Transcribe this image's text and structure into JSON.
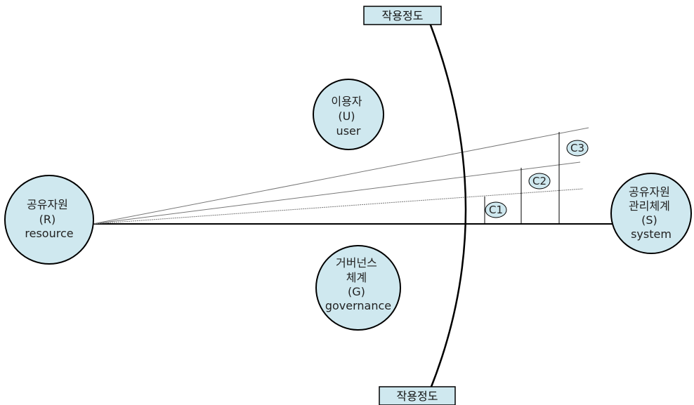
{
  "colors": {
    "node_fill": "#cfe8ef",
    "stroke": "#000000",
    "ray": "#777777"
  },
  "nodes": {
    "resource": {
      "lines": [
        "공유자원",
        "(R)",
        "resource"
      ]
    },
    "user": {
      "lines": [
        "이용자",
        "(U)",
        "user"
      ]
    },
    "governance": {
      "lines": [
        "거버넌스",
        "체계",
        "(G)",
        "governance"
      ]
    },
    "system": {
      "lines": [
        "공유자원",
        "관리체계",
        "(S)",
        "system"
      ]
    }
  },
  "labels": {
    "top": "작용정도",
    "bottom": "작용정도"
  },
  "c_markers": [
    "C1",
    "C2",
    "C3"
  ]
}
